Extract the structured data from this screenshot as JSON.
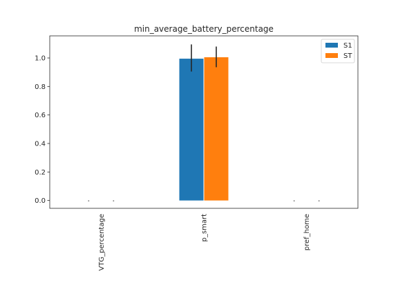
{
  "chart_data": {
    "type": "bar",
    "title": "min_average_battery_percentage",
    "xlabel": "",
    "ylabel": "",
    "categories": [
      "VTG_percentage",
      "p_smart",
      "pref_home"
    ],
    "series": [
      {
        "name": "S1",
        "values": [
          0.0,
          0.995,
          0.0
        ],
        "err_low": [
          0.0,
          0.905,
          0.0
        ],
        "err_high": [
          0.0,
          1.095,
          0.0
        ],
        "color": "#1f77b4"
      },
      {
        "name": "ST",
        "values": [
          0.0,
          1.005,
          0.0
        ],
        "err_low": [
          0.0,
          0.935,
          0.0
        ],
        "err_high": [
          0.0,
          1.08,
          0.0
        ],
        "color": "#ff7f0e"
      }
    ],
    "ylim": [
      -0.055,
      1.155
    ],
    "yticks": [
      0.0,
      0.2,
      0.4,
      0.6,
      0.8,
      1.0
    ],
    "ytick_labels": [
      "0.0",
      "0.2",
      "0.4",
      "0.6",
      "0.8",
      "1.0"
    ],
    "grid": false,
    "legend_position": "top-right"
  }
}
